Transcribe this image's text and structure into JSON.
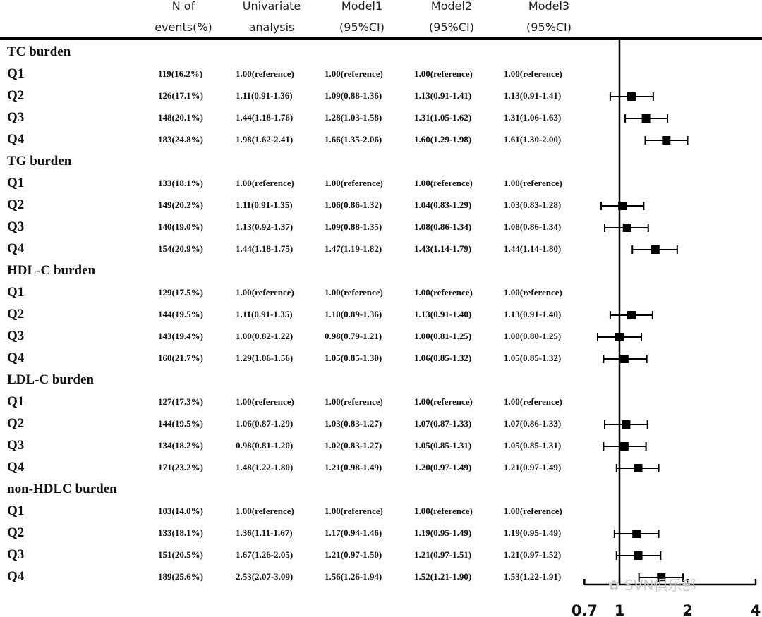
{
  "headers": [
    {
      "line1": "N of",
      "line2": "events(%)"
    },
    {
      "line1": "Univariate",
      "line2": "analysis"
    },
    {
      "line1": "Model1",
      "line2": "(95%CI)"
    },
    {
      "line1": "Model2",
      "line2": "(95%CI)"
    },
    {
      "line1": "Model3",
      "line2": "(95%CI)"
    }
  ],
  "sections": [
    {
      "title": "TC burden",
      "rows": [
        {
          "q": "Q1",
          "events": "119(16.2%)",
          "univariate": "1.00(reference)",
          "model1": "1.00(reference)",
          "model2": "1.00(reference)",
          "model3": "1.00(reference)"
        },
        {
          "q": "Q2",
          "events": "126(17.1%)",
          "univariate": "1.11(0.91-1.36)",
          "model1": "1.09(0.88-1.36)",
          "model2": "1.13(0.91-1.41)",
          "model3": "1.13(0.91-1.41)"
        },
        {
          "q": "Q3",
          "events": "148(20.1%)",
          "univariate": "1.44(1.18-1.76)",
          "model1": "1.28(1.03-1.58)",
          "model2": "1.31(1.05-1.62)",
          "model3": "1.31(1.06-1.63)"
        },
        {
          "q": "Q4",
          "events": "183(24.8%)",
          "univariate": "1.98(1.62-2.41)",
          "model1": "1.66(1.35-2.06)",
          "model2": "1.60(1.29-1.98)",
          "model3": "1.61(1.30-2.00)"
        }
      ]
    },
    {
      "title": "TG burden",
      "rows": [
        {
          "q": "Q1",
          "events": "133(18.1%)",
          "univariate": "1.00(reference)",
          "model1": "1.00(reference)",
          "model2": "1.00(reference)",
          "model3": "1.00(reference)"
        },
        {
          "q": "Q2",
          "events": "149(20.2%)",
          "univariate": "1.11(0.91-1.35)",
          "model1": "1.06(0.86-1.32)",
          "model2": "1.04(0.83-1.29)",
          "model3": "1.03(0.83-1.28)"
        },
        {
          "q": "Q3",
          "events": "140(19.0%)",
          "univariate": "1.13(0.92-1.37)",
          "model1": "1.09(0.88-1.35)",
          "model2": "1.08(0.86-1.34)",
          "model3": "1.08(0.86-1.34)"
        },
        {
          "q": "Q4",
          "events": "154(20.9%)",
          "univariate": "1.44(1.18-1.75)",
          "model1": "1.47(1.19-1.82)",
          "model2": "1.43(1.14-1.79)",
          "model3": "1.44(1.14-1.80)"
        }
      ]
    },
    {
      "title": "HDL-C burden",
      "rows": [
        {
          "q": "Q1",
          "events": "129(17.5%)",
          "univariate": "1.00(reference)",
          "model1": "1.00(reference)",
          "model2": "1.00(reference)",
          "model3": "1.00(reference)"
        },
        {
          "q": "Q2",
          "events": "144(19.5%)",
          "univariate": "1.11(0.91-1.35)",
          "model1": "1.10(0.89-1.36)",
          "model2": "1.13(0.91-1.40)",
          "model3": "1.13(0.91-1.40)"
        },
        {
          "q": "Q3",
          "events": "143(19.4%)",
          "univariate": "1.00(0.82-1.22)",
          "model1": "0.98(0.79-1.21)",
          "model2": "1.00(0.81-1.25)",
          "model3": "1.00(0.80-1.25)"
        },
        {
          "q": "Q4",
          "events": "160(21.7%)",
          "univariate": "1.29(1.06-1.56)",
          "model1": "1.05(0.85-1.30)",
          "model2": "1.06(0.85-1.32)",
          "model3": "1.05(0.85-1.32)"
        }
      ]
    },
    {
      "title": "LDL-C burden",
      "rows": [
        {
          "q": "Q1",
          "events": "127(17.3%)",
          "univariate": "1.00(reference)",
          "model1": "1.00(reference)",
          "model2": "1.00(reference)",
          "model3": "1.00(reference)"
        },
        {
          "q": "Q2",
          "events": "144(19.5%)",
          "univariate": "1.06(0.87-1.29)",
          "model1": "1.03(0.83-1.27)",
          "model2": "1.07(0.87-1.33)",
          "model3": "1.07(0.86-1.33)"
        },
        {
          "q": "Q3",
          "events": "134(18.2%)",
          "univariate": "0.98(0.81-1.20)",
          "model1": "1.02(0.83-1.27)",
          "model2": "1.05(0.85-1.31)",
          "model3": "1.05(0.85-1.31)"
        },
        {
          "q": "Q4",
          "events": "171(23.2%)",
          "univariate": "1.48(1.22-1.80)",
          "model1": "1.21(0.98-1.49)",
          "model2": "1.20(0.97-1.49)",
          "model3": "1.21(0.97-1.49)"
        }
      ]
    },
    {
      "title": "non-HDLC burden",
      "rows": [
        {
          "q": "Q1",
          "events": "103(14.0%)",
          "univariate": "1.00(reference)",
          "model1": "1.00(reference)",
          "model2": "1.00(reference)",
          "model3": "1.00(reference)"
        },
        {
          "q": "Q2",
          "events": "133(18.1%)",
          "univariate": "1.36(1.11-1.67)",
          "model1": "1.17(0.94-1.46)",
          "model2": "1.19(0.95-1.49)",
          "model3": "1.19(0.95-1.49)"
        },
        {
          "q": "Q3",
          "events": "151(20.5%)",
          "univariate": "1.67(1.26-2.05)",
          "model1": "1.21(0.97-1.50)",
          "model2": "1.21(0.97-1.51)",
          "model3": "1.21(0.97-1.52)"
        },
        {
          "q": "Q4",
          "events": "189(25.6%)",
          "univariate": "2.53(2.07-3.09)",
          "model1": "1.56(1.26-1.94)",
          "model2": "1.52(1.21-1.90)",
          "model3": "1.53(1.22-1.91)"
        }
      ]
    }
  ],
  "chart_data": {
    "type": "scatter",
    "x_scale": "log",
    "xlim": [
      0.7,
      4
    ],
    "x_ticks": [
      "0.7",
      "1",
      "2",
      "4"
    ],
    "reference_line_x": 1,
    "grid": false,
    "marker": "square",
    "series": [
      {
        "points": [
          {
            "section": "TC burden",
            "q": "Q2",
            "hr": 1.13,
            "lo": 0.91,
            "hi": 1.41
          },
          {
            "section": "TC burden",
            "q": "Q3",
            "hr": 1.31,
            "lo": 1.06,
            "hi": 1.63
          },
          {
            "section": "TC burden",
            "q": "Q4",
            "hr": 1.61,
            "lo": 1.3,
            "hi": 2.0
          },
          {
            "section": "TG burden",
            "q": "Q2",
            "hr": 1.03,
            "lo": 0.83,
            "hi": 1.28
          },
          {
            "section": "TG burden",
            "q": "Q3",
            "hr": 1.08,
            "lo": 0.86,
            "hi": 1.34
          },
          {
            "section": "TG burden",
            "q": "Q4",
            "hr": 1.44,
            "lo": 1.14,
            "hi": 1.8
          },
          {
            "section": "HDL-C burden",
            "q": "Q2",
            "hr": 1.13,
            "lo": 0.91,
            "hi": 1.4
          },
          {
            "section": "HDL-C burden",
            "q": "Q3",
            "hr": 1.0,
            "lo": 0.8,
            "hi": 1.25
          },
          {
            "section": "HDL-C burden",
            "q": "Q4",
            "hr": 1.05,
            "lo": 0.85,
            "hi": 1.32
          },
          {
            "section": "LDL-C burden",
            "q": "Q2",
            "hr": 1.07,
            "lo": 0.86,
            "hi": 1.33
          },
          {
            "section": "LDL-C burden",
            "q": "Q3",
            "hr": 1.05,
            "lo": 0.85,
            "hi": 1.31
          },
          {
            "section": "LDL-C burden",
            "q": "Q4",
            "hr": 1.21,
            "lo": 0.97,
            "hi": 1.49
          },
          {
            "section": "non-HDLC burden",
            "q": "Q2",
            "hr": 1.19,
            "lo": 0.95,
            "hi": 1.49
          },
          {
            "section": "non-HDLC burden",
            "q": "Q3",
            "hr": 1.21,
            "lo": 0.97,
            "hi": 1.52
          },
          {
            "section": "non-HDLC burden",
            "q": "Q4",
            "hr": 1.53,
            "lo": 1.22,
            "hi": 1.91
          }
        ]
      }
    ]
  },
  "watermark": "SVN俱乐部"
}
